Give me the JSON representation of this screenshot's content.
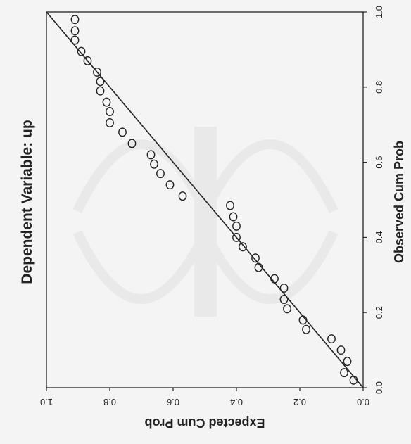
{
  "chart_data": {
    "type": "scatter",
    "title": "Dependent Variable: up",
    "xlabel": "Observed Cum Prob",
    "ylabel": "Expected Cum Prob",
    "xlim": [
      0,
      1
    ],
    "ylim": [
      0,
      1
    ],
    "x_ticks": [
      "0.0",
      "0.2",
      "0.4",
      "0.6",
      "0.8",
      "1.0"
    ],
    "y_ticks": [
      "0.0",
      "0.2",
      "0.4",
      "0.6",
      "0.8",
      "1.0"
    ],
    "reference_line": [
      [
        0,
        0
      ],
      [
        1,
        1
      ]
    ],
    "grid": false,
    "orientation": "rotated-90-clockwise",
    "points": [
      {
        "x": 0.02,
        "y": 0.03
      },
      {
        "x": 0.04,
        "y": 0.06
      },
      {
        "x": 0.07,
        "y": 0.05
      },
      {
        "x": 0.1,
        "y": 0.07
      },
      {
        "x": 0.13,
        "y": 0.1
      },
      {
        "x": 0.155,
        "y": 0.18
      },
      {
        "x": 0.18,
        "y": 0.19
      },
      {
        "x": 0.21,
        "y": 0.24
      },
      {
        "x": 0.235,
        "y": 0.25
      },
      {
        "x": 0.265,
        "y": 0.25
      },
      {
        "x": 0.29,
        "y": 0.28
      },
      {
        "x": 0.32,
        "y": 0.33
      },
      {
        "x": 0.345,
        "y": 0.34
      },
      {
        "x": 0.375,
        "y": 0.38
      },
      {
        "x": 0.4,
        "y": 0.4
      },
      {
        "x": 0.43,
        "y": 0.4
      },
      {
        "x": 0.455,
        "y": 0.41
      },
      {
        "x": 0.485,
        "y": 0.42
      },
      {
        "x": 0.51,
        "y": 0.57
      },
      {
        "x": 0.54,
        "y": 0.61
      },
      {
        "x": 0.57,
        "y": 0.64
      },
      {
        "x": 0.595,
        "y": 0.66
      },
      {
        "x": 0.62,
        "y": 0.67
      },
      {
        "x": 0.65,
        "y": 0.73
      },
      {
        "x": 0.68,
        "y": 0.76
      },
      {
        "x": 0.705,
        "y": 0.8
      },
      {
        "x": 0.735,
        "y": 0.8
      },
      {
        "x": 0.76,
        "y": 0.81
      },
      {
        "x": 0.79,
        "y": 0.83
      },
      {
        "x": 0.815,
        "y": 0.83
      },
      {
        "x": 0.84,
        "y": 0.84
      },
      {
        "x": 0.87,
        "y": 0.87
      },
      {
        "x": 0.895,
        "y": 0.89
      },
      {
        "x": 0.925,
        "y": 0.91
      },
      {
        "x": 0.95,
        "y": 0.91
      },
      {
        "x": 0.98,
        "y": 0.91
      }
    ]
  }
}
